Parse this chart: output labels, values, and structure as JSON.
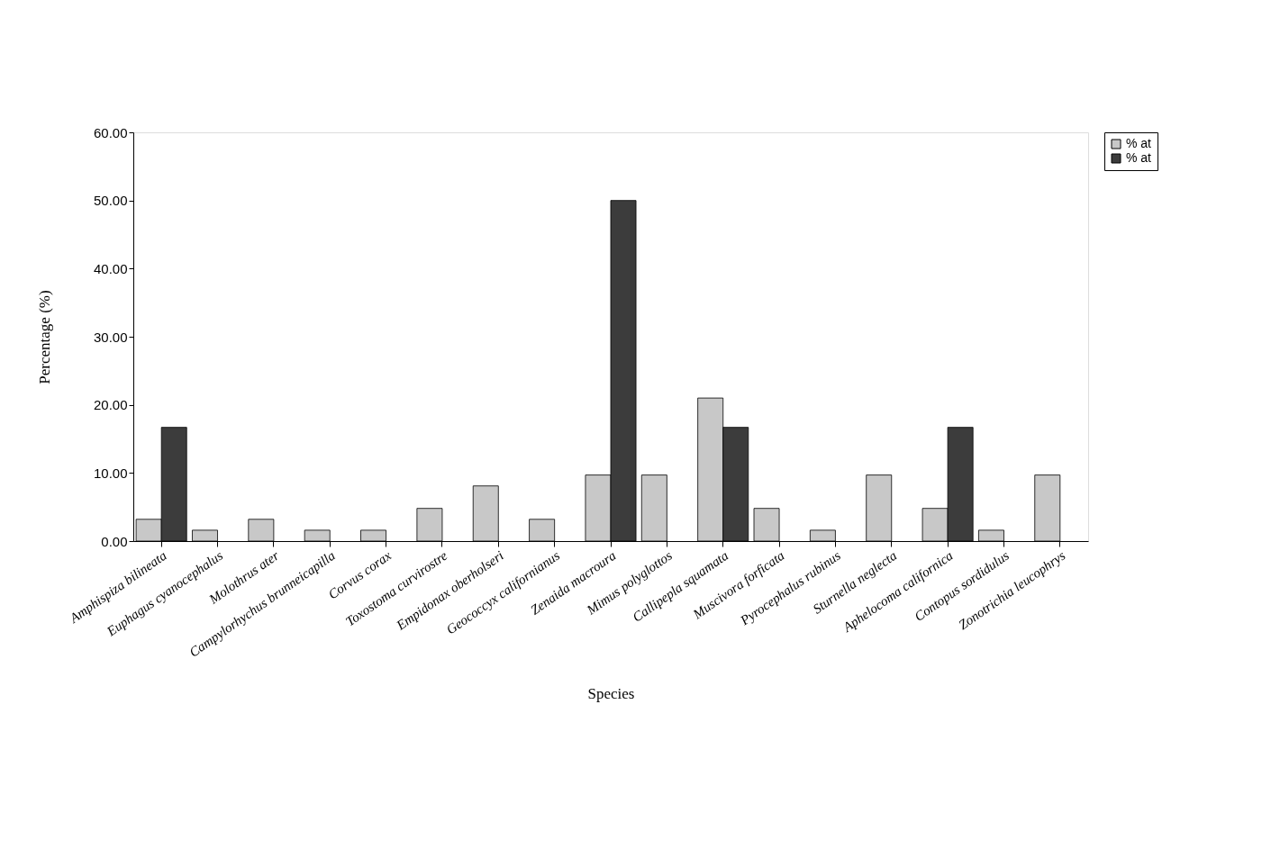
{
  "chart_data": {
    "type": "bar",
    "xlabel": "Species",
    "ylabel": "Percentage (%)",
    "categories": [
      "Amphispiza bilineata",
      "Euphagus cyanocephalus",
      "Molothrus ater",
      "Campylorhychus brunneicapilla",
      "Corvus corax",
      "Toxostoma curvirostre",
      "Empidonax oberholseri",
      "Geococcyx californianus",
      "Zenaida macroura",
      "Mimus polyglottos",
      "Callipepla squamata",
      "Muscivora forficata",
      "Pyrocephalus rubinus",
      "Sturnella neglecta",
      "Aphelocoma californica",
      "Contopus sordidulus",
      "Zonotrichia leucophrys"
    ],
    "series": [
      {
        "name": "% at",
        "color": "#c8c8c8",
        "values": [
          3.2,
          1.6,
          3.2,
          1.6,
          1.6,
          4.8,
          8.1,
          3.2,
          9.7,
          9.7,
          21.0,
          4.8,
          1.6,
          9.7,
          4.8,
          1.6,
          9.7
        ]
      },
      {
        "name": "% at",
        "color": "#3c3c3c",
        "values": [
          16.7,
          null,
          null,
          null,
          null,
          null,
          null,
          null,
          50.0,
          null,
          16.7,
          null,
          null,
          null,
          16.7,
          null,
          null
        ]
      }
    ],
    "ylim": [
      0,
      60
    ],
    "yticks": [
      {
        "value": 0,
        "label": "0.00"
      },
      {
        "value": 10,
        "label": "10.00"
      },
      {
        "value": 20,
        "label": "20.00"
      },
      {
        "value": 30,
        "label": "30.00"
      },
      {
        "value": 40,
        "label": "40.00"
      },
      {
        "value": 50,
        "label": "50.00"
      },
      {
        "value": 60,
        "label": "60.00"
      }
    ],
    "grid": false,
    "legend": "right"
  }
}
